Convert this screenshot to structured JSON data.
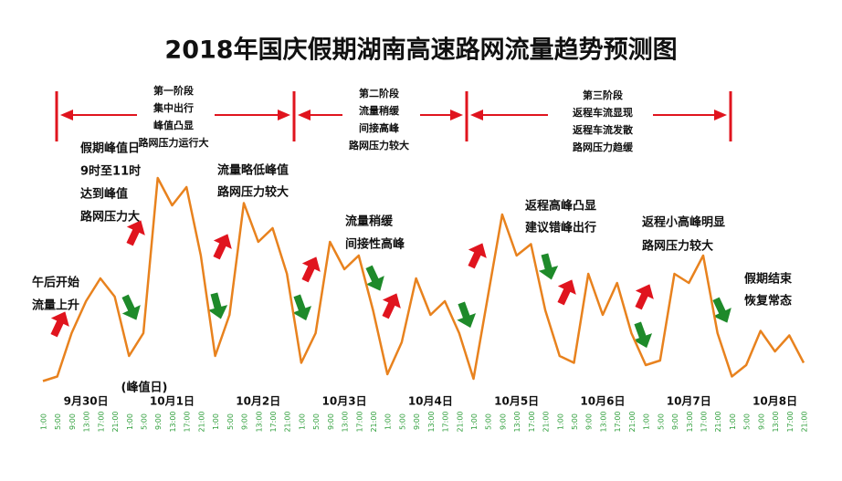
{
  "chart_data": {
    "type": "line",
    "title": "2018年国庆假期湖南高速路网流量趋势预测图",
    "categories": [
      "1:00",
      "5:00",
      "9:00",
      "13:00",
      "17:00",
      "21:00",
      "1:00",
      "5:00",
      "9:00",
      "13:00",
      "17:00",
      "21:00",
      "1:00",
      "5:00",
      "9:00",
      "13:00",
      "17:00",
      "21:00",
      "1:00",
      "5:00",
      "9:00",
      "13:00",
      "17:00",
      "21:00",
      "1:00",
      "5:00",
      "9:00",
      "13:00",
      "17:00",
      "21:00",
      "1:00",
      "5:00",
      "9:00",
      "13:00",
      "17:00",
      "21:00",
      "1:00",
      "5:00",
      "9:00",
      "13:00",
      "17:00",
      "21:00",
      "1:00",
      "5:00",
      "9:00",
      "13:00",
      "17:00",
      "21:00",
      "1:00",
      "5:00",
      "9:00",
      "13:00",
      "17:00",
      "21:00"
    ],
    "day_labels": [
      "9月30日",
      "10月1日",
      "10月2日",
      "10月3日",
      "10月4日",
      "10月5日",
      "10月6日",
      "10月7日",
      "10月8日"
    ],
    "peak_note": "(峰值日)",
    "values": [
      5,
      7,
      26,
      40,
      50,
      42,
      16,
      26,
      94,
      82,
      90,
      60,
      16,
      34,
      83,
      66,
      72,
      52,
      13,
      26,
      66,
      54,
      60,
      36,
      8,
      22,
      50,
      34,
      40,
      26,
      6,
      42,
      78,
      60,
      65,
      36,
      16,
      13,
      52,
      34,
      48,
      26,
      12,
      14,
      52,
      48,
      60,
      26,
      7,
      12,
      27,
      18,
      25,
      13
    ],
    "color": "#e8821e",
    "ylim": [
      0,
      100
    ],
    "stages": [
      {
        "lines": [
          "第一阶段",
          "集中出行",
          "峰值凸显",
          "路网压力运行大"
        ]
      },
      {
        "lines": [
          "第二阶段",
          "流量稍缓",
          "间接高峰",
          "路网压力较大"
        ]
      },
      {
        "lines": [
          "第三阶段",
          "返程车流显现",
          "返程车流发散",
          "路网压力趋缓"
        ]
      }
    ],
    "annotations": [
      {
        "lines": [
          "午后开始",
          "流量上升"
        ]
      },
      {
        "lines": [
          "假期峰值日",
          "9时至11时",
          "达到峰值",
          "路网压力大"
        ]
      },
      {
        "lines": [
          "流量略低峰值",
          "路网压力较大"
        ]
      },
      {
        "lines": [
          "流量稍缓",
          "间接性高峰"
        ]
      },
      {
        "lines": [
          "返程高峰凸显",
          "建议错峰出行"
        ]
      },
      {
        "lines": [
          "返程小高峰明显",
          "路网压力较大"
        ]
      },
      {
        "lines": [
          "假期结束",
          "恢复常态"
        ]
      }
    ]
  }
}
